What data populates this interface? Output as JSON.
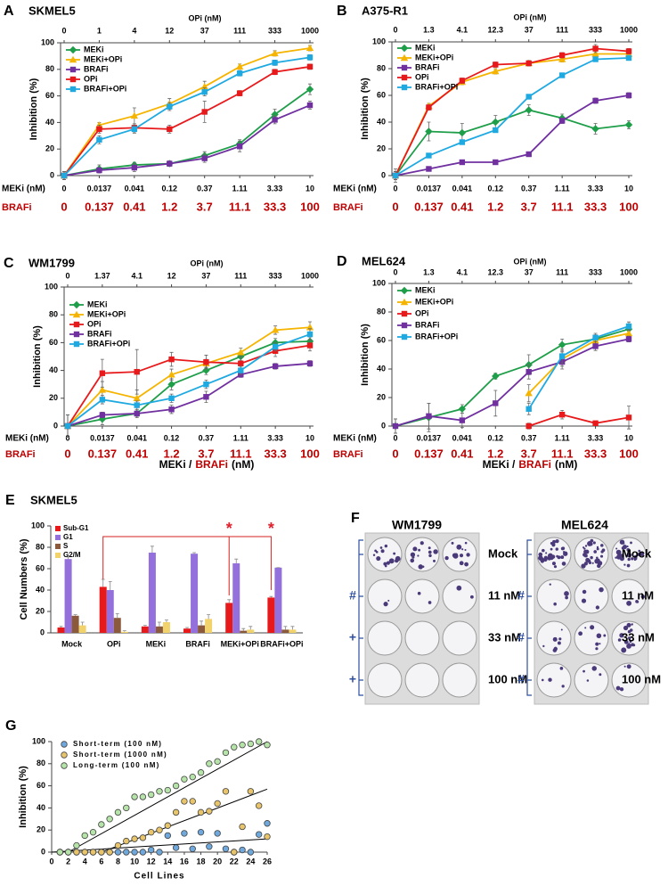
{
  "chart_data": [
    {
      "type": "line",
      "panel": "A",
      "title": "SKMEL5",
      "top_axis_label": "OPi (nM)",
      "top_categories": [
        "0",
        "1",
        "4",
        "12",
        "37",
        "111",
        "333",
        "1000"
      ],
      "categories_label": "MEKi (nM)",
      "categories": [
        "0",
        "0.0137",
        "0.041",
        "0.12",
        "0.37",
        "1.11",
        "3.33",
        "10"
      ],
      "second_categories_label": "BRAFi",
      "second_categories": [
        "0",
        "0.137",
        "0.41",
        "1.2",
        "3.7",
        "11.1",
        "33.3",
        "100"
      ],
      "y_label": "Inhibition (%)",
      "ylim": [
        0,
        100
      ],
      "yticks": [
        0,
        20,
        40,
        60,
        80,
        100
      ],
      "legend": "upper left",
      "series": [
        {
          "name": "MEKi",
          "color": "#1f9e4a",
          "marker": "diamond",
          "values": [
            0,
            5,
            8,
            9,
            15,
            24,
            46,
            65
          ],
          "errors": [
            3,
            3,
            2,
            2,
            3,
            3,
            4,
            4
          ]
        },
        {
          "name": "MEKi+OPi",
          "color": "#f5b400",
          "marker": "triangle",
          "values": [
            0,
            38,
            45,
            54,
            67,
            82,
            92,
            96
          ],
          "errors": [
            3,
            2,
            6,
            4,
            4,
            2,
            2,
            2
          ]
        },
        {
          "name": "BRAFi",
          "color": "#7030a0",
          "marker": "square",
          "values": [
            0,
            4,
            6,
            9,
            13,
            22,
            42,
            53
          ],
          "errors": [
            3,
            2,
            3,
            2,
            3,
            4,
            3,
            3
          ]
        },
        {
          "name": "OPi",
          "color": "#e8191b",
          "marker": "square",
          "values": [
            0,
            35,
            36,
            35,
            48,
            62,
            78,
            82
          ],
          "errors": [
            3,
            3,
            3,
            3,
            8,
            2,
            2,
            2
          ]
        },
        {
          "name": "BRAFi+OPi",
          "color": "#1fa9e1",
          "marker": "square",
          "values": [
            0,
            27,
            35,
            52,
            63,
            77,
            85,
            89
          ],
          "errors": [
            3,
            3,
            3,
            3,
            3,
            2,
            2,
            2
          ]
        }
      ]
    },
    {
      "type": "line",
      "panel": "B",
      "title": "A375-R1",
      "top_axis_label": "OPi (nM)",
      "top_categories": [
        "0",
        "1.3",
        "4.1",
        "12.3",
        "37",
        "111",
        "333",
        "1000"
      ],
      "categories_label": "MEKi (nM)",
      "categories": [
        "0",
        "0.0137",
        "0.041",
        "0.12",
        "0.37",
        "1.11",
        "3.33",
        "10"
      ],
      "second_categories_label": "BRAFi",
      "second_categories": [
        "0",
        "0.137",
        "0.41",
        "1.2",
        "3.7",
        "11.1",
        "33.3",
        "100"
      ],
      "y_label": "Inhibition (%)",
      "ylim": [
        0,
        100
      ],
      "yticks": [
        0,
        20,
        40,
        60,
        80,
        100
      ],
      "legend": "upper left",
      "series": [
        {
          "name": "MEKi",
          "color": "#1f9e4a",
          "marker": "diamond",
          "values": [
            0,
            33,
            32,
            40,
            49,
            43,
            35,
            38
          ],
          "errors": [
            5,
            7,
            7,
            5,
            4,
            3,
            4,
            3
          ]
        },
        {
          "name": "MEKi+OPi",
          "color": "#f5b400",
          "marker": "triangle",
          "values": [
            0,
            52,
            70,
            78,
            84,
            87,
            91,
            91
          ],
          "errors": [
            3,
            2,
            2,
            2,
            2,
            2,
            2,
            2
          ]
        },
        {
          "name": "BRAFi",
          "color": "#7030a0",
          "marker": "square",
          "values": [
            0,
            5,
            10,
            10,
            16,
            41,
            56,
            60
          ],
          "errors": [
            3,
            1,
            1,
            1,
            1,
            2,
            2,
            2
          ]
        },
        {
          "name": "OPi",
          "color": "#e8191b",
          "marker": "square",
          "values": [
            0,
            51,
            71,
            83,
            84,
            90,
            95,
            93
          ],
          "errors": [
            3,
            2,
            2,
            2,
            2,
            2,
            3,
            2
          ]
        },
        {
          "name": "BRAFi+OPi",
          "color": "#1fa9e1",
          "marker": "square",
          "values": [
            0,
            15,
            25,
            34,
            59,
            75,
            87,
            88
          ],
          "errors": [
            3,
            1,
            1,
            1,
            1,
            1,
            1,
            1
          ]
        }
      ]
    },
    {
      "type": "line",
      "panel": "C",
      "title": "WM1799",
      "top_axis_label": "OPi (nM)",
      "top_categories": [
        "0",
        "1.37",
        "4.1",
        "12",
        "37",
        "111",
        "333",
        "1000"
      ],
      "categories_label": "MEKi (nM)",
      "categories": [
        "0",
        "0.0137",
        "0.041",
        "0.12",
        "0.37",
        "1.11",
        "3.33",
        "10"
      ],
      "second_categories_label": "BRAFi",
      "second_categories": [
        "0",
        "0.137",
        "0.41",
        "1.2",
        "3.7",
        "11.1",
        "33.3",
        "100"
      ],
      "x_label": [
        "MEKi /",
        "BRAFi",
        "(nM)"
      ],
      "y_label": "Inhibition (%)",
      "ylim": [
        0,
        100
      ],
      "yticks": [
        0,
        20,
        40,
        60,
        80,
        100
      ],
      "legend": "upper left",
      "series": [
        {
          "name": "MEKi",
          "color": "#1f9e4a",
          "marker": "diamond",
          "values": [
            0,
            5,
            9,
            30,
            40,
            50,
            60,
            61
          ],
          "errors": [
            8,
            4,
            3,
            4,
            3,
            3,
            3,
            3
          ]
        },
        {
          "name": "MEKi+OPi",
          "color": "#f5b400",
          "marker": "triangle",
          "values": [
            0,
            26,
            20,
            37,
            45,
            53,
            69,
            71
          ],
          "errors": [
            8,
            6,
            6,
            4,
            3,
            3,
            3,
            4
          ]
        },
        {
          "name": "OPi",
          "color": "#e8191b",
          "marker": "square",
          "values": [
            0,
            38,
            39,
            48,
            46,
            45,
            54,
            58
          ],
          "errors": [
            8,
            10,
            16,
            5,
            5,
            5,
            4,
            4
          ]
        },
        {
          "name": "BRAFi",
          "color": "#7030a0",
          "marker": "square",
          "values": [
            0,
            8,
            9,
            12,
            21,
            37,
            43,
            45
          ],
          "errors": [
            8,
            2,
            2,
            3,
            4,
            2,
            2,
            2
          ]
        },
        {
          "name": "BRAFi+OPi",
          "color": "#1fa9e1",
          "marker": "square",
          "values": [
            0,
            19,
            15,
            20,
            30,
            40,
            57,
            66
          ],
          "errors": [
            8,
            3,
            3,
            3,
            3,
            3,
            3,
            4
          ]
        }
      ]
    },
    {
      "type": "line",
      "panel": "D",
      "title": "MEL624",
      "top_axis_label": "OPi (nM)",
      "top_categories": [
        "0",
        "1.3",
        "4.1",
        "12.3",
        "37",
        "111",
        "333",
        "1000"
      ],
      "categories_label": "MEKi (nM)",
      "categories": [
        "0",
        "0.0137",
        "0.041",
        "0.12",
        "0.37",
        "1.11",
        "3.33",
        "10"
      ],
      "second_categories_label": "BRAFi",
      "second_categories": [
        "0",
        "0.137",
        "0.41",
        "1.2",
        "3.7",
        "11.1",
        "33.3",
        "100"
      ],
      "x_label": [
        "MEKi /",
        "BRAFi",
        "(nM)"
      ],
      "y_label": "Inhibition (%)",
      "ylim": [
        0,
        100
      ],
      "yticks": [
        0,
        20,
        40,
        60,
        80,
        100
      ],
      "legend": "upper left",
      "series": [
        {
          "name": "MEKi",
          "color": "#1f9e4a",
          "marker": "diamond",
          "values": [
            0,
            6,
            12,
            35,
            43,
            57,
            61,
            68
          ],
          "errors": [
            5,
            10,
            3,
            2,
            7,
            4,
            3,
            3
          ]
        },
        {
          "name": "MEKi+OPi",
          "color": "#f5b400",
          "marker": "triangle",
          "values": [
            null,
            null,
            null,
            null,
            23,
            47,
            60,
            65
          ],
          "errors": [
            null,
            null,
            null,
            null,
            6,
            5,
            3,
            3
          ]
        },
        {
          "name": "OPi",
          "color": "#e8191b",
          "marker": "square",
          "values": [
            null,
            null,
            null,
            null,
            0,
            8,
            2,
            6
          ],
          "errors": [
            null,
            null,
            null,
            null,
            2,
            3,
            1,
            8
          ]
        },
        {
          "name": "BRAFi",
          "color": "#7030a0",
          "marker": "square",
          "values": [
            0,
            7,
            4,
            16,
            38,
            45,
            56,
            61
          ],
          "errors": [
            5,
            9,
            5,
            9,
            5,
            5,
            3,
            2
          ]
        },
        {
          "name": "BRAFi+OPi",
          "color": "#1fa9e1",
          "marker": "square",
          "values": [
            null,
            null,
            null,
            null,
            12,
            49,
            62,
            70
          ],
          "errors": [
            null,
            null,
            null,
            null,
            4,
            5,
            3,
            3
          ]
        }
      ]
    },
    {
      "type": "bar",
      "panel": "E",
      "title": "SKMEL5",
      "y_label": "Cell Numbers (%)",
      "categories": [
        "Mock",
        "OPi",
        "MEKi",
        "BRAFi",
        "MEKi+OPi",
        "BRAFi+OPi"
      ],
      "ylim": [
        0,
        100
      ],
      "yticks": [
        0,
        20,
        40,
        60,
        80,
        100
      ],
      "legend": "upper left",
      "annotations": [
        "*",
        "*"
      ],
      "series": [
        {
          "name": "Sub-G1",
          "color": "#e8191b",
          "values": [
            5,
            43,
            6,
            4,
            28,
            33
          ],
          "errors": [
            1,
            7,
            1,
            1,
            3,
            1
          ]
        },
        {
          "name": "G1",
          "color": "#9370db",
          "values": [
            69,
            40,
            75,
            74,
            65,
            61
          ],
          "errors": [
            2,
            8,
            6,
            1,
            4,
            0
          ]
        },
        {
          "name": "S",
          "color": "#8b5a3c",
          "values": [
            16,
            14,
            6,
            7,
            2,
            3
          ],
          "errors": [
            1,
            4,
            4,
            4,
            2,
            3
          ]
        },
        {
          "name": "G2/M",
          "color": "#f2d36b",
          "values": [
            7,
            1,
            10,
            13,
            3,
            3
          ],
          "errors": [
            3,
            1,
            2,
            4,
            3,
            3
          ]
        }
      ]
    },
    {
      "type": "scatter",
      "panel": "G",
      "x_label": "Cell Lines",
      "y_label": "Inhibition (%)",
      "xlim": [
        0,
        26
      ],
      "xticks": [
        0,
        2,
        4,
        6,
        8,
        10,
        12,
        14,
        16,
        18,
        20,
        22,
        24,
        26
      ],
      "ylim": [
        0,
        100
      ],
      "yticks": [
        0,
        20,
        40,
        60,
        80,
        100
      ],
      "legend": "upper left",
      "series": [
        {
          "name": "Short-term (100 nM)",
          "color": "#6ea8dc",
          "x": [
            1,
            2,
            3,
            4,
            5,
            6,
            7,
            8,
            9,
            10,
            11,
            12,
            13,
            14,
            15,
            16,
            17,
            18,
            19,
            20,
            21,
            22,
            23,
            24,
            25,
            26
          ],
          "values": [
            0,
            0,
            0,
            0,
            0,
            0,
            0,
            0,
            0,
            0,
            0,
            2,
            0,
            15,
            4,
            17,
            3,
            18,
            5,
            17,
            3,
            0,
            2,
            0,
            16,
            26
          ],
          "fit_x": [
            0,
            26
          ],
          "fit_y": [
            0,
            12
          ]
        },
        {
          "name": "Short-term (1000 nM)",
          "color": "#e8c46a",
          "x": [
            1,
            2,
            3,
            4,
            5,
            6,
            7,
            8,
            9,
            10,
            11,
            12,
            13,
            14,
            15,
            16,
            17,
            18,
            19,
            20,
            21,
            22,
            23,
            24,
            25,
            26
          ],
          "values": [
            0,
            0,
            0,
            0,
            0,
            0,
            0,
            6,
            10,
            12,
            13,
            18,
            20,
            24,
            36,
            46,
            46,
            36,
            37,
            44,
            55,
            0,
            23,
            55,
            42,
            14
          ],
          "fit_x": [
            6,
            26
          ],
          "fit_y": [
            0,
            57
          ]
        },
        {
          "name": "Long-term (100 nM)",
          "color": "#b5e3a8",
          "x": [
            1,
            2,
            3,
            4,
            5,
            6,
            7,
            8,
            9,
            10,
            11,
            12,
            13,
            14,
            15,
            16,
            17,
            18,
            19,
            20,
            21,
            22,
            23,
            24,
            25,
            26
          ],
          "values": [
            0,
            0,
            6,
            15,
            18,
            25,
            30,
            36,
            40,
            50,
            50,
            52,
            55,
            56,
            60,
            66,
            68,
            72,
            80,
            82,
            90,
            95,
            97,
            98,
            100,
            97
          ],
          "fit_x": [
            2,
            26
          ],
          "fit_y": [
            0,
            100
          ]
        }
      ]
    }
  ],
  "panel_f": {
    "label": "F",
    "plates": [
      {
        "title": "WM1799",
        "row_labels": [
          "Mock",
          "11 nM",
          "33 nM",
          "100 nM"
        ],
        "markers": [
          "#",
          "+",
          "+"
        ]
      },
      {
        "title": "MEL624",
        "row_labels": [
          "Mock",
          "11 nM",
          "33 nM",
          "100 nM"
        ],
        "markers": [
          "#",
          "#",
          "#"
        ]
      }
    ]
  }
}
